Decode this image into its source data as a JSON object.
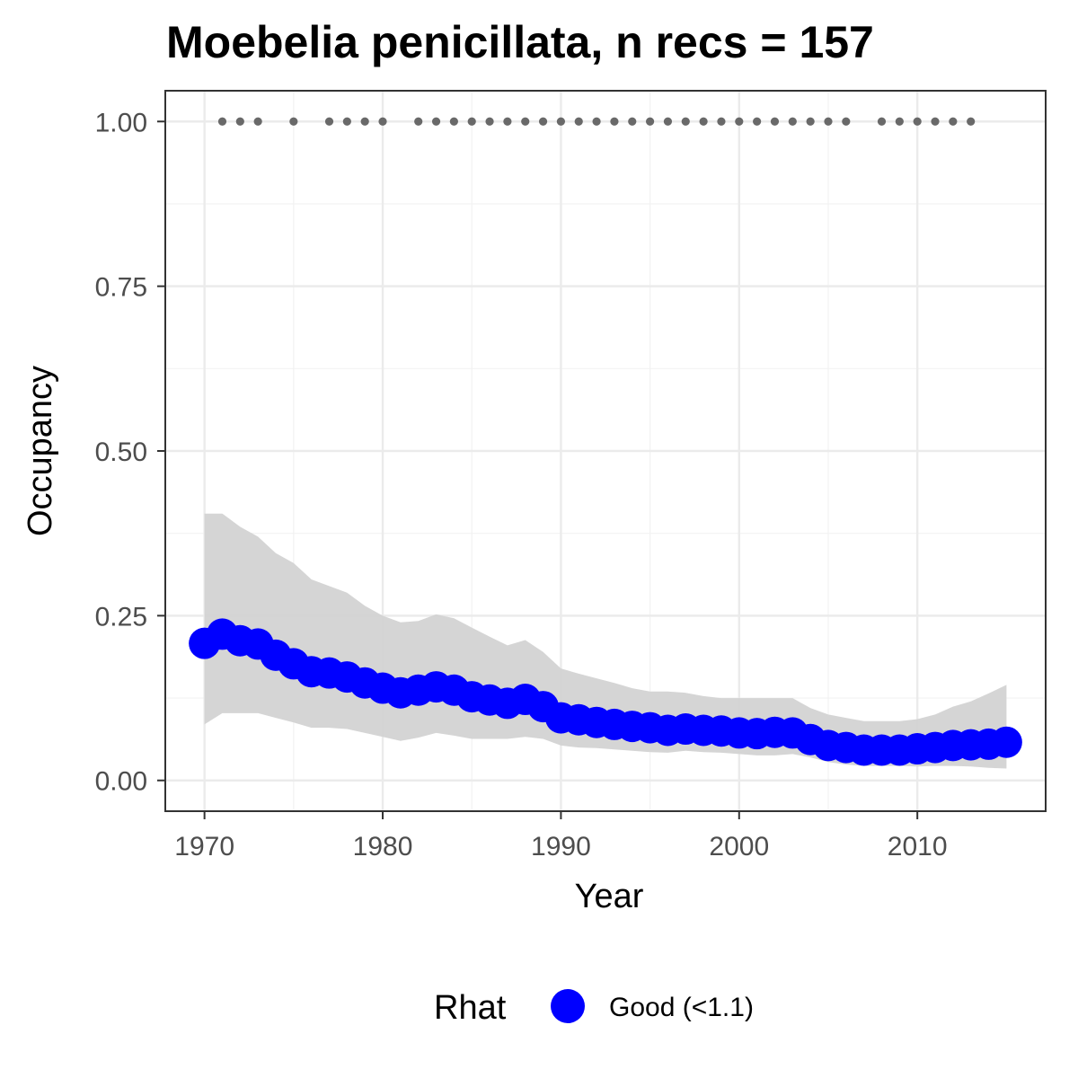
{
  "chart_data": {
    "type": "line",
    "title": "Moebelia penicillata, n recs = 157",
    "xlabel": "Year",
    "ylabel": "Occupancy",
    "xlim": [
      1967.8,
      2017.2
    ],
    "ylim": [
      -0.0467,
      1.0467
    ],
    "x_ticks": [
      1970,
      1980,
      1990,
      2000,
      2010
    ],
    "x_tick_labels": [
      "1970",
      "1980",
      "1990",
      "2000",
      "2010"
    ],
    "y_ticks": [
      0,
      0.25,
      0.5,
      0.75,
      1.0
    ],
    "y_tick_labels": [
      "0.00",
      "0.25",
      "0.50",
      "0.75",
      "1.00"
    ],
    "grid": true,
    "legend": {
      "title": "Rhat",
      "position": "bottom",
      "entries": [
        {
          "label": "Good (<1.1)",
          "color": "#0000FF"
        }
      ]
    },
    "series": [
      {
        "name": "Good (<1.1)",
        "role": "occupancy mean",
        "color": "#0000FF",
        "x": [
          1970,
          1971,
          1972,
          1973,
          1974,
          1975,
          1976,
          1977,
          1978,
          1979,
          1980,
          1981,
          1982,
          1983,
          1984,
          1985,
          1986,
          1987,
          1988,
          1989,
          1990,
          1991,
          1992,
          1993,
          1994,
          1995,
          1996,
          1997,
          1998,
          1999,
          2000,
          2001,
          2002,
          2003,
          2004,
          2005,
          2006,
          2007,
          2008,
          2009,
          2010,
          2011,
          2012,
          2013,
          2014,
          2015
        ],
        "y": [
          0.208,
          0.222,
          0.212,
          0.207,
          0.19,
          0.177,
          0.165,
          0.163,
          0.157,
          0.148,
          0.14,
          0.133,
          0.137,
          0.142,
          0.137,
          0.127,
          0.122,
          0.117,
          0.123,
          0.112,
          0.095,
          0.092,
          0.088,
          0.085,
          0.082,
          0.08,
          0.076,
          0.078,
          0.076,
          0.075,
          0.072,
          0.071,
          0.073,
          0.072,
          0.062,
          0.053,
          0.05,
          0.046,
          0.046,
          0.046,
          0.048,
          0.05,
          0.053,
          0.054,
          0.055,
          0.058
        ]
      }
    ],
    "ribbon": {
      "role": "credible interval",
      "color": "#d3d3d3",
      "x": [
        1970,
        1971,
        1972,
        1973,
        1974,
        1975,
        1976,
        1977,
        1978,
        1979,
        1980,
        1981,
        1982,
        1983,
        1984,
        1985,
        1986,
        1987,
        1988,
        1989,
        1990,
        1991,
        1992,
        1993,
        1994,
        1995,
        1996,
        1997,
        1998,
        1999,
        2000,
        2001,
        2002,
        2003,
        2004,
        2005,
        2006,
        2007,
        2008,
        2009,
        2010,
        2011,
        2012,
        2013,
        2014,
        2015
      ],
      "lower": [
        0.085,
        0.102,
        0.102,
        0.102,
        0.095,
        0.088,
        0.08,
        0.08,
        0.078,
        0.072,
        0.066,
        0.06,
        0.065,
        0.072,
        0.068,
        0.063,
        0.063,
        0.063,
        0.066,
        0.063,
        0.053,
        0.05,
        0.049,
        0.047,
        0.045,
        0.043,
        0.042,
        0.045,
        0.043,
        0.042,
        0.04,
        0.038,
        0.038,
        0.04,
        0.035,
        0.028,
        0.024,
        0.022,
        0.022,
        0.022,
        0.021,
        0.022,
        0.022,
        0.021,
        0.019,
        0.018
      ],
      "upper": [
        0.405,
        0.405,
        0.385,
        0.37,
        0.345,
        0.33,
        0.305,
        0.295,
        0.285,
        0.265,
        0.25,
        0.24,
        0.242,
        0.252,
        0.246,
        0.232,
        0.218,
        0.205,
        0.213,
        0.195,
        0.17,
        0.162,
        0.155,
        0.148,
        0.14,
        0.135,
        0.135,
        0.133,
        0.128,
        0.125,
        0.125,
        0.125,
        0.125,
        0.125,
        0.11,
        0.1,
        0.095,
        0.09,
        0.09,
        0.09,
        0.093,
        0.1,
        0.112,
        0.12,
        0.132,
        0.145
      ]
    },
    "records": {
      "role": "years with records",
      "color": "#696969",
      "y": 1.0,
      "x": [
        1971,
        1972,
        1973,
        1975,
        1977,
        1978,
        1979,
        1980,
        1982,
        1983,
        1984,
        1985,
        1986,
        1987,
        1988,
        1989,
        1990,
        1991,
        1992,
        1993,
        1994,
        1995,
        1996,
        1997,
        1998,
        1999,
        2000,
        2001,
        2002,
        2003,
        2004,
        2005,
        2006,
        2008,
        2009,
        2010,
        2011,
        2012,
        2013
      ]
    }
  }
}
